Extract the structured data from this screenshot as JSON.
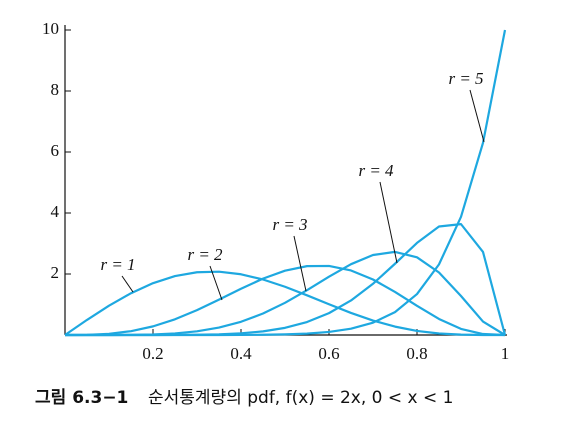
{
  "chart_data": {
    "type": "line",
    "figure_label": "그림 6.3−1",
    "title": "순서통계량의 pdf, f(x) = 2x, 0 < x < 1",
    "x": [
      0,
      0.05,
      0.1,
      0.15,
      0.2,
      0.25,
      0.3,
      0.35,
      0.4,
      0.45,
      0.5,
      0.55,
      0.6,
      0.65,
      0.7,
      0.75,
      0.8,
      0.85,
      0.9,
      0.95,
      1
    ],
    "series": [
      {
        "name": "r = 1",
        "color": "#1ea8e0",
        "values": [
          0,
          0.495,
          0.961,
          1.37,
          1.699,
          1.931,
          2.057,
          2.075,
          1.991,
          1.82,
          1.582,
          1.302,
          1.007,
          0.723,
          0.474,
          0.275,
          0.134,
          0.05,
          0.012,
          0.001,
          0
        ]
      },
      {
        "name": "r = 2",
        "color": "#1ea8e0",
        "values": [
          0,
          0.005,
          0.039,
          0.126,
          0.283,
          0.515,
          0.814,
          1.159,
          1.517,
          1.849,
          2.109,
          2.258,
          2.265,
          2.116,
          1.82,
          1.413,
          0.956,
          0.525,
          0.2,
          0.032,
          0
        ]
      },
      {
        "name": "r = 3",
        "color": "#1ea8e0",
        "values": [
          0,
          0,
          0.001,
          0.004,
          0.018,
          0.051,
          0.121,
          0.243,
          0.434,
          0.704,
          1.055,
          1.469,
          1.911,
          2.322,
          2.623,
          2.725,
          2.548,
          2.05,
          1.279,
          0.441,
          0
        ]
      },
      {
        "name": "r = 4",
        "color": "#1ea8e0",
        "values": [
          0,
          0,
          0,
          0,
          0,
          0.002,
          0.008,
          0.023,
          0.055,
          0.119,
          0.234,
          0.425,
          0.717,
          1.132,
          1.68,
          2.336,
          3.02,
          3.558,
          3.635,
          2.723,
          0
        ]
      },
      {
        "name": "r = 5",
        "color": "#1ea8e0",
        "values": [
          0,
          0,
          0,
          0,
          0,
          0,
          0,
          0.001,
          0.003,
          0.008,
          0.02,
          0.046,
          0.101,
          0.207,
          0.404,
          0.751,
          1.342,
          2.316,
          3.874,
          6.302,
          10
        ]
      }
    ],
    "xlim": [
      0,
      1
    ],
    "xticks": [
      0.2,
      0.4,
      0.6,
      0.8,
      1
    ],
    "ylim": [
      0,
      10
    ],
    "yticks": [
      2,
      4,
      6,
      8,
      10
    ]
  }
}
